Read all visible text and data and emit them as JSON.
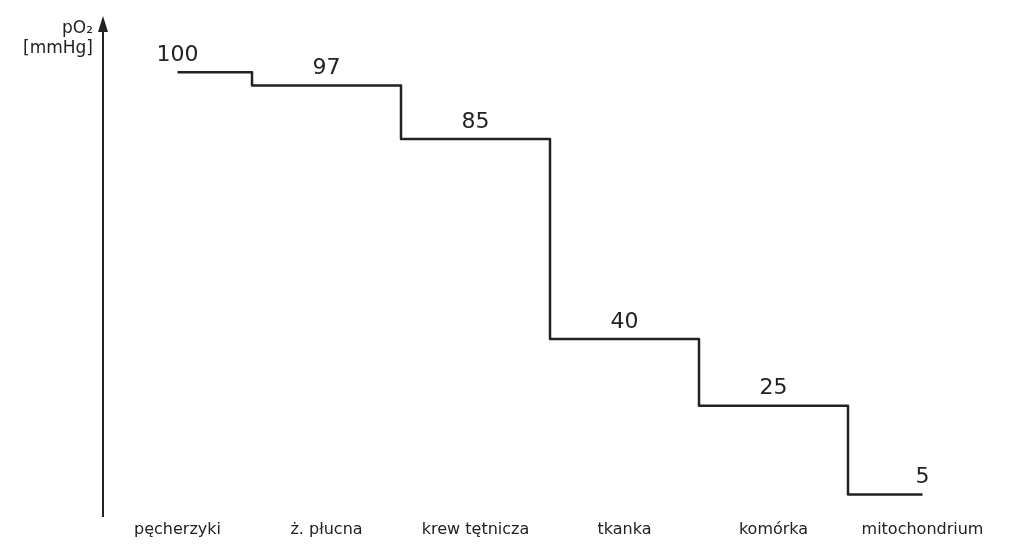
{
  "chart_data": {
    "type": "step",
    "ylabel": "pO₂ [mmHg]",
    "categories": [
      "pęcherzyki",
      "ż. płucna",
      "krew tętnicza",
      "tkanka",
      "komórka",
      "mitochondrium"
    ],
    "series": [
      {
        "color": "#222222",
        "values": [
          100,
          97,
          85,
          40,
          25,
          5
        ]
      }
    ],
    "ylim": [
      0,
      105
    ],
    "data_labels": true,
    "tick_labels": "x",
    "grid": false,
    "legend": false,
    "marker": "none",
    "line_style": "solid"
  }
}
